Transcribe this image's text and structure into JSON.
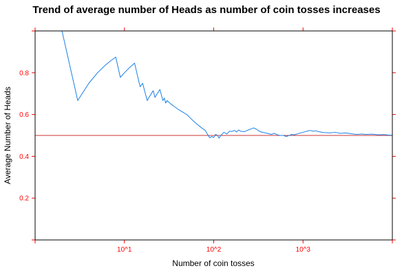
{
  "colors": {
    "axis": "#ff0000",
    "frame": "#000000",
    "series": "#1a7fe6",
    "reference": "#cc3333"
  },
  "chart_data": {
    "type": "line",
    "title": "Trend of average number of Heads as number of coin tosses increases",
    "xlabel": "Number of coin tosses",
    "ylabel": "Average Number of Heads",
    "x_scale": "log10",
    "xlim": [
      1,
      10000
    ],
    "ylim": [
      0,
      1
    ],
    "x_ticks": [
      {
        "value": 10,
        "label": "10^1"
      },
      {
        "value": 100,
        "label": "10^2"
      },
      {
        "value": 1000,
        "label": "10^3"
      }
    ],
    "y_ticks": [
      {
        "value": 0.2,
        "label": "0.2"
      },
      {
        "value": 0.4,
        "label": "0.4"
      },
      {
        "value": 0.6,
        "label": "0.6"
      },
      {
        "value": 0.8,
        "label": "0.8"
      }
    ],
    "grid": false,
    "reference_line": {
      "y": 0.5
    },
    "series": [
      {
        "x": [
          1,
          2,
          3,
          4,
          5,
          6,
          7,
          8,
          9,
          10,
          11,
          12,
          13,
          14,
          15,
          16,
          17,
          18,
          19,
          20,
          21,
          22,
          23,
          24,
          25,
          26,
          27,
          28,
          29,
          30,
          32,
          34,
          36,
          38,
          40,
          42,
          44,
          46,
          48,
          50,
          55,
          60,
          65,
          70,
          75,
          80,
          85,
          90,
          95,
          100,
          105,
          110,
          115,
          120,
          130,
          140,
          150,
          160,
          170,
          180,
          190,
          200,
          220,
          240,
          260,
          280,
          300,
          330,
          360,
          400,
          440,
          480,
          520,
          560,
          600,
          650,
          700,
          750,
          800,
          900,
          1000,
          1100,
          1200,
          1300,
          1400,
          1500,
          1700,
          2000,
          2300,
          2600,
          3000,
          3500,
          4000,
          4500,
          5000,
          6000,
          7000,
          8000,
          9000,
          10000
        ],
        "y": [
          1.0,
          1.0,
          0.667,
          0.75,
          0.8,
          0.833,
          0.857,
          0.875,
          0.778,
          0.8,
          0.818,
          0.833,
          0.846,
          0.786,
          0.733,
          0.75,
          0.706,
          0.667,
          0.684,
          0.7,
          0.714,
          0.682,
          0.696,
          0.708,
          0.72,
          0.692,
          0.667,
          0.679,
          0.655,
          0.667,
          0.656,
          0.647,
          0.639,
          0.632,
          0.625,
          0.619,
          0.614,
          0.609,
          0.604,
          0.6,
          0.582,
          0.567,
          0.554,
          0.543,
          0.533,
          0.525,
          0.506,
          0.489,
          0.495,
          0.49,
          0.505,
          0.5,
          0.487,
          0.5,
          0.515,
          0.507,
          0.52,
          0.519,
          0.524,
          0.517,
          0.526,
          0.52,
          0.518,
          0.525,
          0.531,
          0.536,
          0.53,
          0.518,
          0.514,
          0.51,
          0.505,
          0.51,
          0.502,
          0.5,
          0.5,
          0.495,
          0.5,
          0.505,
          0.503,
          0.51,
          0.515,
          0.52,
          0.524,
          0.52,
          0.522,
          0.518,
          0.514,
          0.512,
          0.515,
          0.51,
          0.512,
          0.508,
          0.505,
          0.507,
          0.505,
          0.506,
          0.503,
          0.504,
          0.502,
          0.501
        ]
      }
    ]
  }
}
